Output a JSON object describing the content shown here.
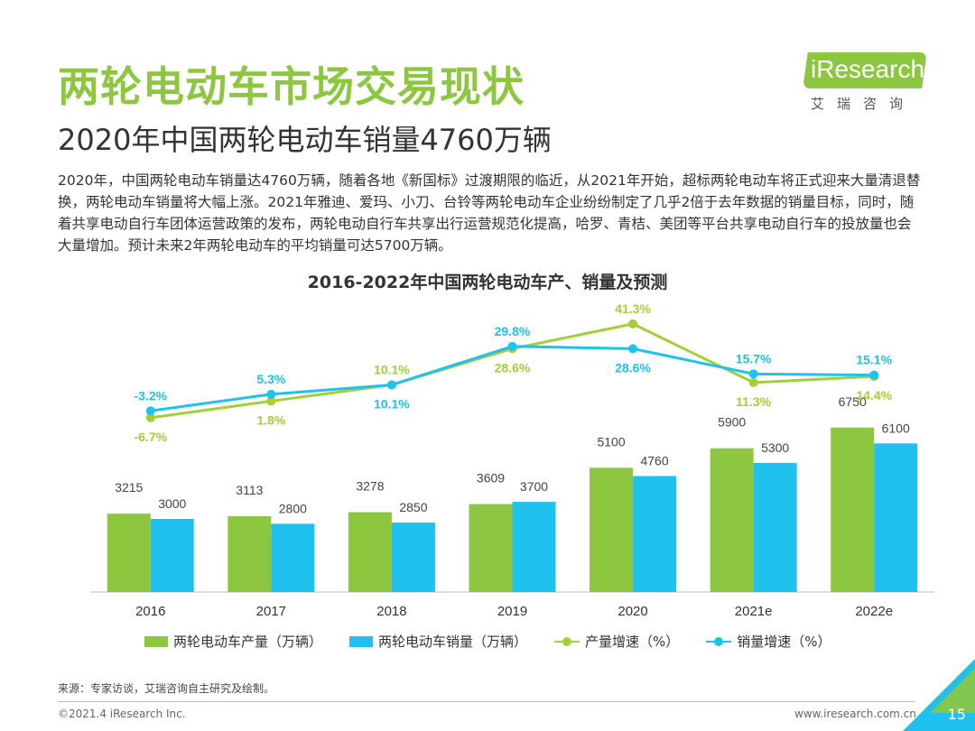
{
  "header": {
    "title": "两轮电动车市场交易现状",
    "subtitle": "2020年中国两轮电动车销量4760万辆"
  },
  "logo": {
    "text": "iResearch",
    "cn": "艾瑞咨询"
  },
  "body": "2020年，中国两轮电动车销量达4760万辆，随着各地《新国标》过渡期限的临近，从2021年开始，超标两轮电动车将正式迎来大量清退替换，两轮电动车销量将大幅上涨。2021年雅迪、爱玛、小刀、台铃等两轮电动车企业纷纷制定了几乎2倍于去年数据的销量目标，同时，随着共享电动自行车团体运营政策的发布，两轮电动自行车共享出行运营规范化提高，哈罗、青桔、美团等平台共享电动自行车的投放量也会大量增加。预计未来2年两轮电动车的平均销量可达5700万辆。",
  "chart_data": {
    "type": "bar",
    "title": "2016-2022年中国两轮电动车产、销量及预测",
    "categories": [
      "2016",
      "2017",
      "2018",
      "2019",
      "2020",
      "2021e",
      "2022e"
    ],
    "series": [
      {
        "name": "两轮电动车产量（万辆）",
        "kind": "bar",
        "color": "#8dc63f",
        "values": [
          3215,
          3113,
          3278,
          3609,
          5100,
          5900,
          6750
        ]
      },
      {
        "name": "两轮电动车销量（万辆）",
        "kind": "bar",
        "color": "#1fc1ee",
        "values": [
          3000,
          2800,
          2850,
          3700,
          4760,
          5300,
          6100
        ]
      },
      {
        "name": "产量增速（%）",
        "kind": "line",
        "color": "#a3cf3a",
        "values": [
          -6.7,
          1.8,
          10.1,
          28.6,
          41.3,
          11.3,
          14.4
        ],
        "labels": [
          "-6.7%",
          "1.8%",
          "10.1%",
          "28.6%",
          "41.3%",
          "11.3%",
          "14.4%"
        ]
      },
      {
        "name": "销量增速（%）",
        "kind": "line",
        "color": "#1fc1ee",
        "values": [
          -3.2,
          5.3,
          10.1,
          29.8,
          28.6,
          15.7,
          15.1
        ],
        "labels": [
          "-3.2%",
          "5.3%",
          "10.1%",
          "29.8%",
          "28.6%",
          "15.7%",
          "15.1%"
        ]
      }
    ],
    "bar_ylim": [
      0,
      8000
    ],
    "line_ylim": [
      -10,
      50
    ]
  },
  "source": "来源：专家访谈，艾瑞咨询自主研究及绘制。",
  "footer": {
    "left": "©2021.4 iResearch Inc.",
    "right": "www.iresearch.com.cn",
    "page": "15"
  },
  "colors": {
    "brand_green": "#8dc63f",
    "brand_blue": "#1fc1ee"
  }
}
